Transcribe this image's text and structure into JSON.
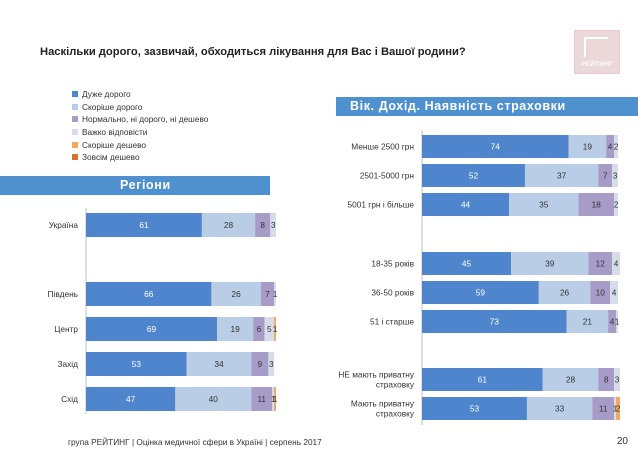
{
  "header": {
    "title": "Наскільки дорого, зазвичай, обходиться лікування для Вас і Вашої родини?"
  },
  "logo": {
    "text": "РЕЙТИНГ"
  },
  "legend": {
    "items": [
      {
        "label": "Дуже дорого",
        "color": "#4f85cc"
      },
      {
        "label": "Скоріше дорого",
        "color": "#b9cde6"
      },
      {
        "label": "Нормально, ні дорого, ні дешево",
        "color": "#a79cc8"
      },
      {
        "label": "Важко відповісти",
        "color": "#d6dde8"
      },
      {
        "label": "Скоріше дешево",
        "color": "#f1a860"
      },
      {
        "label": "Зовсім дешево",
        "color": "#d2742e"
      }
    ]
  },
  "sections": {
    "regions": "Регіони",
    "age_income_insurance": "Вік. Дохід. Наявність страховки"
  },
  "footer": {
    "text": "група РЕЙТИНГ  |  Оцінка медичної сфери в Україні  |  серпень 2017",
    "page": "20"
  },
  "chart_data": [
    {
      "type": "bar",
      "orientation": "horizontal",
      "stacked": true,
      "title": "",
      "categories": [
        "Україна",
        "Південь",
        "Центр",
        "Захід",
        "Схід"
      ],
      "series": [
        {
          "name": "Дуже дорого",
          "values": [
            61,
            66,
            69,
            53,
            47
          ]
        },
        {
          "name": "Скоріше дорого",
          "values": [
            28,
            26,
            19,
            34,
            40
          ]
        },
        {
          "name": "Нормально, ні дорого, ні дешево",
          "values": [
            8,
            7,
            6,
            9,
            11
          ]
        },
        {
          "name": "Важко відповісти",
          "values": [
            3,
            1,
            5,
            3,
            1
          ]
        },
        {
          "name": "Скоріше дешево",
          "values": [
            0,
            0,
            1,
            0,
            1
          ]
        },
        {
          "name": "Зовсім дешево",
          "values": [
            0,
            0,
            0,
            0,
            0
          ]
        }
      ],
      "xlim": [
        0,
        100
      ],
      "grid": false
    },
    {
      "type": "bar",
      "orientation": "horizontal",
      "stacked": true,
      "title": "",
      "categories": [
        "Менше 2500 грн",
        "2501-5000 грн",
        "5001 грн і більше",
        "18-35 років",
        "36-50 років",
        "51 і старше",
        "НЕ мають приватну страховку",
        "Мають приватну страховку"
      ],
      "series": [
        {
          "name": "Дуже дорого",
          "values": [
            74,
            52,
            44,
            45,
            59,
            73,
            61,
            53
          ]
        },
        {
          "name": "Скоріше дорого",
          "values": [
            19,
            37,
            35,
            39,
            26,
            21,
            28,
            33
          ]
        },
        {
          "name": "Нормально, ні дорого, ні дешево",
          "values": [
            4,
            7,
            18,
            12,
            10,
            4,
            8,
            11
          ]
        },
        {
          "name": "Важко відповісти",
          "values": [
            2,
            3,
            2,
            4,
            4,
            1,
            3,
            1
          ]
        },
        {
          "name": "Скоріше дешево",
          "values": [
            0,
            0,
            0,
            0,
            0,
            0,
            0,
            2
          ]
        },
        {
          "name": "Зовсім дешево",
          "values": [
            0,
            0,
            0,
            0,
            0,
            0,
            0,
            0
          ]
        }
      ],
      "xlim": [
        0,
        100
      ],
      "grid": false
    }
  ]
}
